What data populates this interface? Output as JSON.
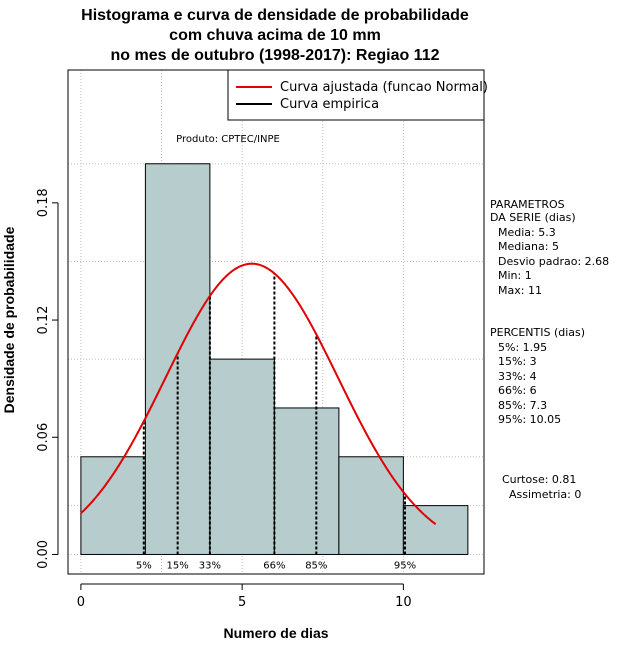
{
  "chart_data": {
    "type": "histogram",
    "title": [
      "Histograma e curva de densidade de probabilidade",
      "com chuva acima de 10 mm",
      "no mes de outubro (1998-2017): Regiao 112"
    ],
    "xlabel": "Numero de dias",
    "ylabel": "Densidade de probabilidade",
    "xlim": [
      -0.4,
      12.5
    ],
    "ylim": [
      -0.01,
      0.248
    ],
    "x_ticks": [
      0,
      5,
      10
    ],
    "x_tick_labels": [
      "0",
      "5",
      "10"
    ],
    "y_ticks": [
      0.0,
      0.06,
      0.12,
      0.18
    ],
    "y_tick_labels": [
      "0.00",
      "0.06",
      "0.12",
      "0.18"
    ],
    "grid": true,
    "legend_position": "top-right",
    "bins": [
      {
        "start": 0,
        "end": 2,
        "density": 0.05
      },
      {
        "start": 2,
        "end": 4,
        "density": 0.2
      },
      {
        "start": 4,
        "end": 6,
        "density": 0.1
      },
      {
        "start": 6,
        "end": 8,
        "density": 0.075
      },
      {
        "start": 8,
        "end": 10,
        "density": 0.05
      },
      {
        "start": 10,
        "end": 12,
        "density": 0.025
      }
    ],
    "series": [
      {
        "name": "Curva ajustada (funcao Normal)",
        "color": "#e00000",
        "distribution": "normal",
        "mean": 5.3,
        "sd": 2.68,
        "x_range": [
          0,
          11
        ]
      },
      {
        "name": "Curva empirica",
        "color": "#000000"
      }
    ],
    "percentile_lines": [
      {
        "x": 1.95,
        "label": "5%"
      },
      {
        "x": 3,
        "label": "15%"
      },
      {
        "x": 4,
        "label": "33%"
      },
      {
        "x": 6,
        "label": "66%"
      },
      {
        "x": 7.3,
        "label": "85%"
      },
      {
        "x": 10.05,
        "label": "95%"
      }
    ],
    "annotation": "Produto: CPTEC/INPE",
    "bar_color": "#b7cccc"
  },
  "side_panel": {
    "parametros": [
      "PARAMETROS",
      "DA SERIE (dias)",
      "Media: 5.3",
      "Mediana: 5",
      "Desvio padrao: 2.68",
      "Min: 1",
      "Max: 11"
    ],
    "percentis": [
      "PERCENTIS (dias)",
      "5%: 1.95",
      "15%: 3",
      "33%: 4",
      "66%: 6",
      "85%: 7.3",
      "95%: 10.05"
    ],
    "stats": [
      "Curtose: 0.81",
      "Assimetria: 0"
    ]
  }
}
